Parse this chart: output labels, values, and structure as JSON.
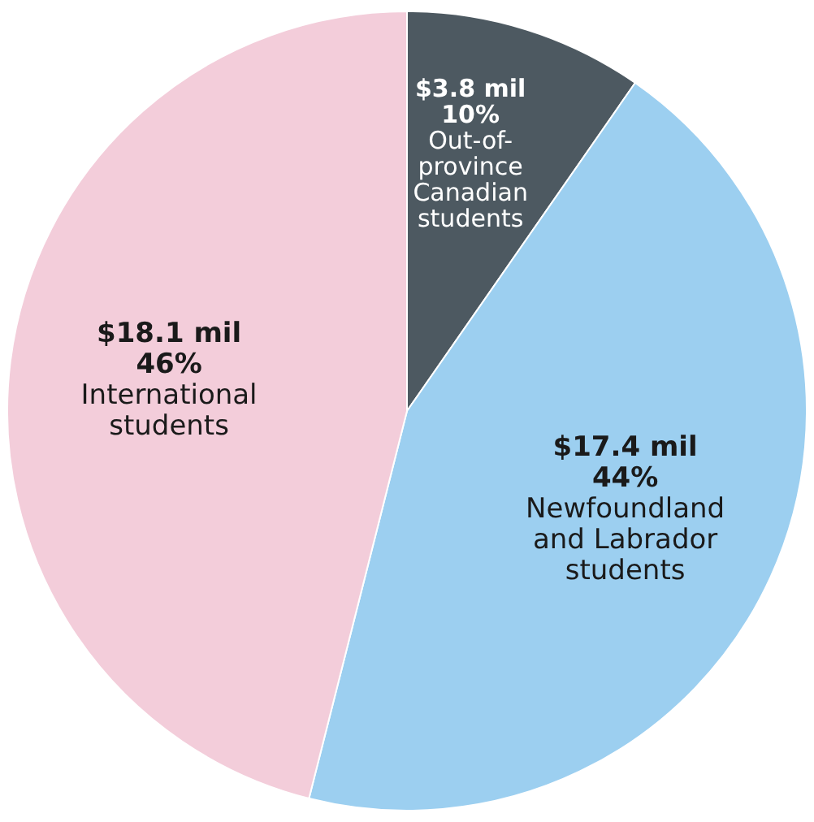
{
  "chart_data": {
    "type": "pie",
    "categories": [
      "Out-of-\nprovince\nCanadian\nstudents",
      "Newfoundland\nand Labrador\nstudents",
      "International\nstudents"
    ],
    "values": [
      3.8,
      17.4,
      18.1
    ],
    "value_labels": [
      "$3.8 mil\n10%",
      "$17.4 mil\n44%",
      "$18.1 mil\n46%"
    ],
    "colors": [
      "#4d5961",
      "#9ccff0",
      "#f3cdda"
    ],
    "legend": false
  }
}
